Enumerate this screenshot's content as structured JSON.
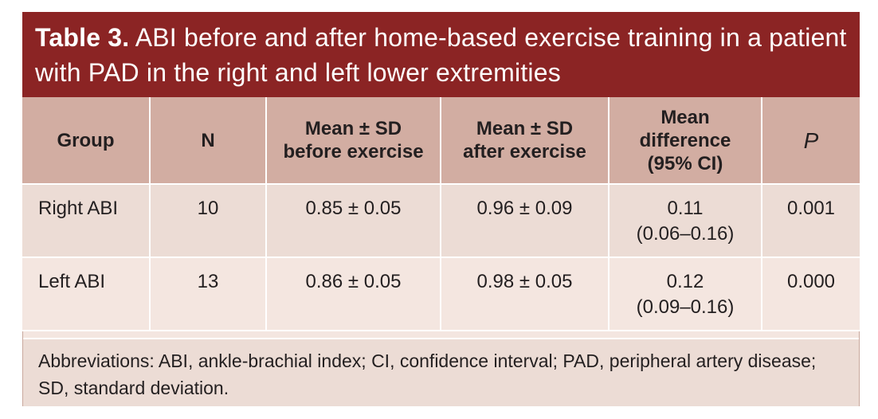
{
  "title": {
    "label": "Table 3.",
    "text": "ABI before and after home-based exercise training in a patient with PAD in the right and left lower extremities"
  },
  "columns": [
    {
      "line1": "Group",
      "line2": "",
      "line3": ""
    },
    {
      "line1": "N",
      "line2": "",
      "line3": ""
    },
    {
      "line1": "Mean ± SD",
      "line2": "before exercise",
      "line3": ""
    },
    {
      "line1": "Mean ± SD",
      "line2": "after exercise",
      "line3": ""
    },
    {
      "line1": "Mean",
      "line2": "difference",
      "line3": "(95% CI)"
    },
    {
      "line1": "P",
      "line2": "",
      "line3": ""
    }
  ],
  "rows": [
    {
      "group": "Right ABI",
      "n": "10",
      "before": "0.85 ± 0.05",
      "after": "0.96 ± 0.09",
      "diff": "0.11",
      "ci": "(0.06–0.16)",
      "p": "0.001"
    },
    {
      "group": "Left ABI",
      "n": "13",
      "before": "0.86 ± 0.05",
      "after": "0.98 ± 0.05",
      "diff": "0.12",
      "ci": "(0.09–0.16)",
      "p": "0.000"
    }
  ],
  "footnote": "Abbreviations: ABI, ankle-brachial index; CI, confidence interval; PAD, peripheral artery disease; SD, standard deviation.",
  "colors": {
    "title_bg": "#8b2424",
    "header_bg": "#d2ada2",
    "row_bg_1": "#ecdcd5",
    "row_bg_2": "#f4e6e0"
  }
}
